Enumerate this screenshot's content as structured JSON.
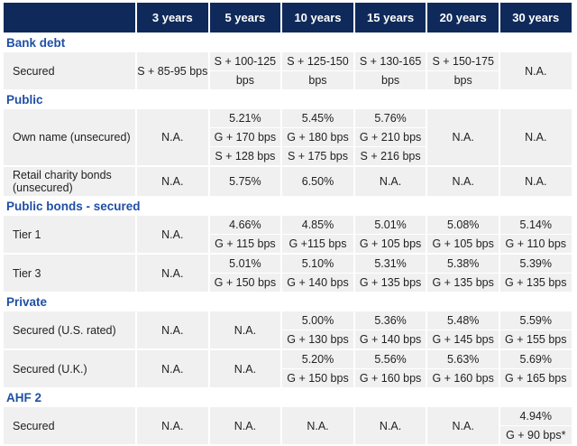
{
  "headers": [
    "",
    "3 years",
    "5 years",
    "10 years",
    "15 years",
    "20 years",
    "30 years"
  ],
  "sections": [
    {
      "title": "Bank debt",
      "rows": [
        {
          "label": "Secured",
          "cells": [
            [
              "S + 85-95 bps"
            ],
            [
              "S + 100-125",
              "bps"
            ],
            [
              "S + 125-150",
              "bps"
            ],
            [
              "S + 130-165",
              "bps"
            ],
            [
              "S + 150-175",
              "bps"
            ],
            [
              "N.A."
            ]
          ]
        }
      ]
    },
    {
      "title": "Public",
      "rows": [
        {
          "label": "Own name (unsecured)",
          "cells": [
            [
              "N.A."
            ],
            [
              "5.21%",
              "G + 170 bps",
              "S + 128 bps"
            ],
            [
              "5.45%",
              "G + 180 bps",
              "S + 175 bps"
            ],
            [
              "5.76%",
              "G + 210 bps",
              "S + 216 bps"
            ],
            [
              "N.A."
            ],
            [
              "N.A."
            ]
          ]
        },
        {
          "label": "Retail charity bonds (unsecured)",
          "cells": [
            [
              "N.A."
            ],
            [
              "5.75%"
            ],
            [
              "6.50%"
            ],
            [
              "N.A."
            ],
            [
              "N.A."
            ],
            [
              "N.A."
            ]
          ]
        }
      ]
    },
    {
      "title": "Public bonds - secured",
      "rows": [
        {
          "label": "Tier 1",
          "cells": [
            [
              "N.A."
            ],
            [
              "4.66%",
              "G + 115 bps"
            ],
            [
              "4.85%",
              "G +115 bps"
            ],
            [
              "5.01%",
              "G + 105 bps"
            ],
            [
              "5.08%",
              "G + 105 bps"
            ],
            [
              "5.14%",
              "G + 110 bps"
            ]
          ]
        },
        {
          "label": "Tier 3",
          "cells": [
            [
              "N.A."
            ],
            [
              "5.01%",
              "G + 150 bps"
            ],
            [
              "5.10%",
              "G + 140 bps"
            ],
            [
              "5.31%",
              "G + 135 bps"
            ],
            [
              "5.38%",
              "G + 135 bps"
            ],
            [
              "5.39%",
              "G + 135 bps"
            ]
          ]
        }
      ]
    },
    {
      "title": "Private",
      "rows": [
        {
          "label": "Secured (U.S. rated)",
          "cells": [
            [
              "N.A."
            ],
            [
              "N.A."
            ],
            [
              "5.00%",
              "G + 130 bps"
            ],
            [
              "5.36%",
              "G + 140 bps"
            ],
            [
              "5.48%",
              "G + 145 bps"
            ],
            [
              "5.59%",
              "G + 155 bps"
            ]
          ]
        },
        {
          "label": "Secured (U.K.)",
          "cells": [
            [
              "N.A."
            ],
            [
              "N.A."
            ],
            [
              "5.20%",
              "G + 150 bps"
            ],
            [
              "5.56%",
              "G + 160 bps"
            ],
            [
              "5.63%",
              "G + 160 bps"
            ],
            [
              "5.69%",
              "G + 165 bps"
            ]
          ]
        }
      ]
    },
    {
      "title": "AHF 2",
      "rows": [
        {
          "label": "Secured",
          "cells": [
            [
              "N.A."
            ],
            [
              "N.A."
            ],
            [
              "N.A."
            ],
            [
              "N.A."
            ],
            [
              "N.A."
            ],
            [
              "4.94%",
              "G + 90 bps*"
            ]
          ]
        }
      ]
    }
  ],
  "colors": {
    "header_bg": "#0f2a5a",
    "section_text": "#1f4fa6",
    "cell_bg": "#f0f0f0"
  }
}
